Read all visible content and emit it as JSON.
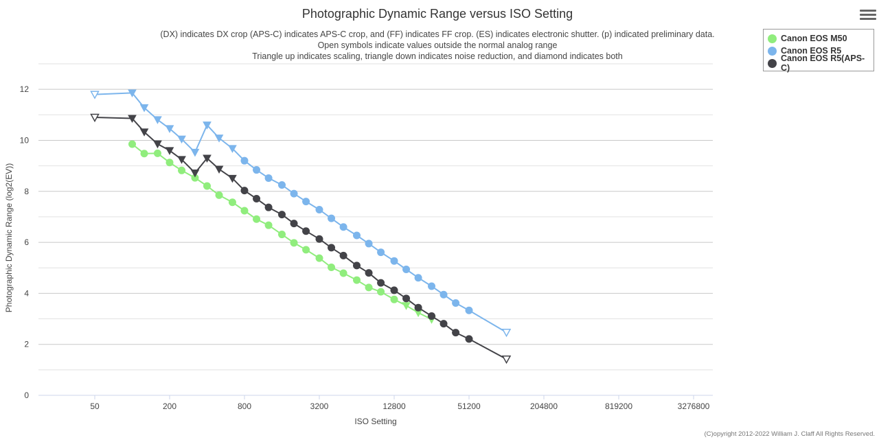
{
  "menu": {
    "icon": "hamburger-menu-icon"
  },
  "chart_data": {
    "type": "line",
    "title": "Photographic Dynamic Range versus ISO Setting",
    "subtitle": [
      "(DX) indicates DX crop (APS-C) indicates APS-C crop, and (FF) indicates FF crop. (ES) indicates electronic shutter. (p) indicated preliminary data.",
      "Open symbols indicate values outside the normal analog range",
      "Triangle up indicates scaling, triangle down indicates noise reduction, and diamond indicates both"
    ],
    "xlabel": "ISO Setting",
    "ylabel": "Photographic Dynamic Range (log2(EV))",
    "x_scale": "log2",
    "xlim": [
      25,
      4000000
    ],
    "x_ticks": [
      50,
      200,
      800,
      3200,
      12800,
      51200,
      204800,
      819200,
      3276800
    ],
    "x_tick_labels": [
      "50",
      "200",
      "800",
      "3200",
      "12800",
      "51200",
      "204800",
      "819200",
      "3276800"
    ],
    "ylim": [
      0,
      13
    ],
    "y_ticks": [
      0,
      2,
      4,
      6,
      8,
      10,
      12
    ],
    "y_tick_labels": [
      "0",
      "2",
      "4",
      "6",
      "8",
      "10",
      "12"
    ],
    "grid": true,
    "legend_position": "top-right",
    "series": [
      {
        "name": "Canon EOS M50",
        "color": "#90ed7d",
        "points": [
          {
            "x": 100,
            "y": 9.85,
            "marker": "circle"
          },
          {
            "x": 125,
            "y": 9.48,
            "marker": "circle"
          },
          {
            "x": 160,
            "y": 9.49,
            "marker": "circle"
          },
          {
            "x": 200,
            "y": 9.13,
            "marker": "circle"
          },
          {
            "x": 250,
            "y": 8.82,
            "marker": "circle"
          },
          {
            "x": 320,
            "y": 8.53,
            "marker": "circle"
          },
          {
            "x": 400,
            "y": 8.21,
            "marker": "circle"
          },
          {
            "x": 500,
            "y": 7.85,
            "marker": "circle"
          },
          {
            "x": 640,
            "y": 7.57,
            "marker": "circle"
          },
          {
            "x": 800,
            "y": 7.24,
            "marker": "circle"
          },
          {
            "x": 1000,
            "y": 6.91,
            "marker": "circle"
          },
          {
            "x": 1250,
            "y": 6.67,
            "marker": "circle"
          },
          {
            "x": 1600,
            "y": 6.31,
            "marker": "circle"
          },
          {
            "x": 2000,
            "y": 5.98,
            "marker": "circle"
          },
          {
            "x": 2500,
            "y": 5.71,
            "marker": "circle"
          },
          {
            "x": 3200,
            "y": 5.38,
            "marker": "circle"
          },
          {
            "x": 4000,
            "y": 5.02,
            "marker": "circle"
          },
          {
            "x": 5000,
            "y": 4.79,
            "marker": "circle"
          },
          {
            "x": 6400,
            "y": 4.52,
            "marker": "circle"
          },
          {
            "x": 8000,
            "y": 4.23,
            "marker": "circle"
          },
          {
            "x": 10000,
            "y": 4.06,
            "marker": "circle"
          },
          {
            "x": 12800,
            "y": 3.76,
            "marker": "circle"
          },
          {
            "x": 16000,
            "y": 3.52,
            "marker": "triangle-down"
          },
          {
            "x": 20000,
            "y": 3.24,
            "marker": "triangle-down"
          },
          {
            "x": 25600,
            "y": 2.98,
            "marker": "triangle-down"
          }
        ]
      },
      {
        "name": "Canon EOS R5",
        "color": "#7cb5ec",
        "points": [
          {
            "x": 50,
            "y": 11.8,
            "marker": "triangle-down-open"
          },
          {
            "x": 100,
            "y": 11.86,
            "marker": "triangle-down"
          },
          {
            "x": 125,
            "y": 11.28,
            "marker": "triangle-down"
          },
          {
            "x": 160,
            "y": 10.81,
            "marker": "triangle-down"
          },
          {
            "x": 200,
            "y": 10.46,
            "marker": "triangle-down"
          },
          {
            "x": 250,
            "y": 10.05,
            "marker": "triangle-down"
          },
          {
            "x": 320,
            "y": 9.53,
            "marker": "triangle-down"
          },
          {
            "x": 400,
            "y": 10.6,
            "marker": "triangle-down"
          },
          {
            "x": 500,
            "y": 10.09,
            "marker": "triangle-down"
          },
          {
            "x": 640,
            "y": 9.68,
            "marker": "triangle-down"
          },
          {
            "x": 800,
            "y": 9.2,
            "marker": "circle"
          },
          {
            "x": 1000,
            "y": 8.84,
            "marker": "circle"
          },
          {
            "x": 1250,
            "y": 8.52,
            "marker": "circle"
          },
          {
            "x": 1600,
            "y": 8.25,
            "marker": "circle"
          },
          {
            "x": 2000,
            "y": 7.91,
            "marker": "circle"
          },
          {
            "x": 2500,
            "y": 7.6,
            "marker": "circle"
          },
          {
            "x": 3200,
            "y": 7.28,
            "marker": "circle"
          },
          {
            "x": 4000,
            "y": 6.94,
            "marker": "circle"
          },
          {
            "x": 5000,
            "y": 6.6,
            "marker": "circle"
          },
          {
            "x": 6400,
            "y": 6.27,
            "marker": "circle"
          },
          {
            "x": 8000,
            "y": 5.95,
            "marker": "circle"
          },
          {
            "x": 10000,
            "y": 5.61,
            "marker": "circle"
          },
          {
            "x": 12800,
            "y": 5.27,
            "marker": "circle"
          },
          {
            "x": 16000,
            "y": 4.94,
            "marker": "circle"
          },
          {
            "x": 20000,
            "y": 4.61,
            "marker": "circle"
          },
          {
            "x": 25600,
            "y": 4.28,
            "marker": "circle"
          },
          {
            "x": 32000,
            "y": 3.95,
            "marker": "circle"
          },
          {
            "x": 40000,
            "y": 3.62,
            "marker": "circle"
          },
          {
            "x": 51200,
            "y": 3.33,
            "marker": "circle"
          },
          {
            "x": 102400,
            "y": 2.47,
            "marker": "triangle-down-open"
          }
        ]
      },
      {
        "name": "Canon EOS R5(APS-C)",
        "color": "#434348",
        "points": [
          {
            "x": 50,
            "y": 10.9,
            "marker": "triangle-down-open"
          },
          {
            "x": 100,
            "y": 10.86,
            "marker": "triangle-down"
          },
          {
            "x": 125,
            "y": 10.33,
            "marker": "triangle-down"
          },
          {
            "x": 160,
            "y": 9.86,
            "marker": "triangle-down"
          },
          {
            "x": 200,
            "y": 9.6,
            "marker": "triangle-down"
          },
          {
            "x": 250,
            "y": 9.25,
            "marker": "triangle-down"
          },
          {
            "x": 320,
            "y": 8.72,
            "marker": "triangle-down"
          },
          {
            "x": 400,
            "y": 9.3,
            "marker": "triangle-down"
          },
          {
            "x": 500,
            "y": 8.87,
            "marker": "triangle-down"
          },
          {
            "x": 640,
            "y": 8.51,
            "marker": "triangle-down"
          },
          {
            "x": 800,
            "y": 8.03,
            "marker": "circle"
          },
          {
            "x": 1000,
            "y": 7.71,
            "marker": "circle"
          },
          {
            "x": 1250,
            "y": 7.37,
            "marker": "circle"
          },
          {
            "x": 1600,
            "y": 7.09,
            "marker": "circle"
          },
          {
            "x": 2000,
            "y": 6.74,
            "marker": "circle"
          },
          {
            "x": 2500,
            "y": 6.44,
            "marker": "circle"
          },
          {
            "x": 3200,
            "y": 6.13,
            "marker": "circle"
          },
          {
            "x": 4000,
            "y": 5.79,
            "marker": "circle"
          },
          {
            "x": 5000,
            "y": 5.48,
            "marker": "circle"
          },
          {
            "x": 6400,
            "y": 5.09,
            "marker": "circle"
          },
          {
            "x": 8000,
            "y": 4.8,
            "marker": "circle"
          },
          {
            "x": 10000,
            "y": 4.41,
            "marker": "circle"
          },
          {
            "x": 12800,
            "y": 4.12,
            "marker": "circle"
          },
          {
            "x": 16000,
            "y": 3.8,
            "marker": "circle"
          },
          {
            "x": 20000,
            "y": 3.44,
            "marker": "circle"
          },
          {
            "x": 25600,
            "y": 3.11,
            "marker": "circle"
          },
          {
            "x": 32000,
            "y": 2.81,
            "marker": "circle"
          },
          {
            "x": 40000,
            "y": 2.46,
            "marker": "circle"
          },
          {
            "x": 51200,
            "y": 2.21,
            "marker": "circle"
          },
          {
            "x": 102400,
            "y": 1.42,
            "marker": "triangle-down-open"
          }
        ]
      }
    ]
  },
  "credits": "(C)opyright 2012-2022 William J. Claff All Rights Reserved."
}
